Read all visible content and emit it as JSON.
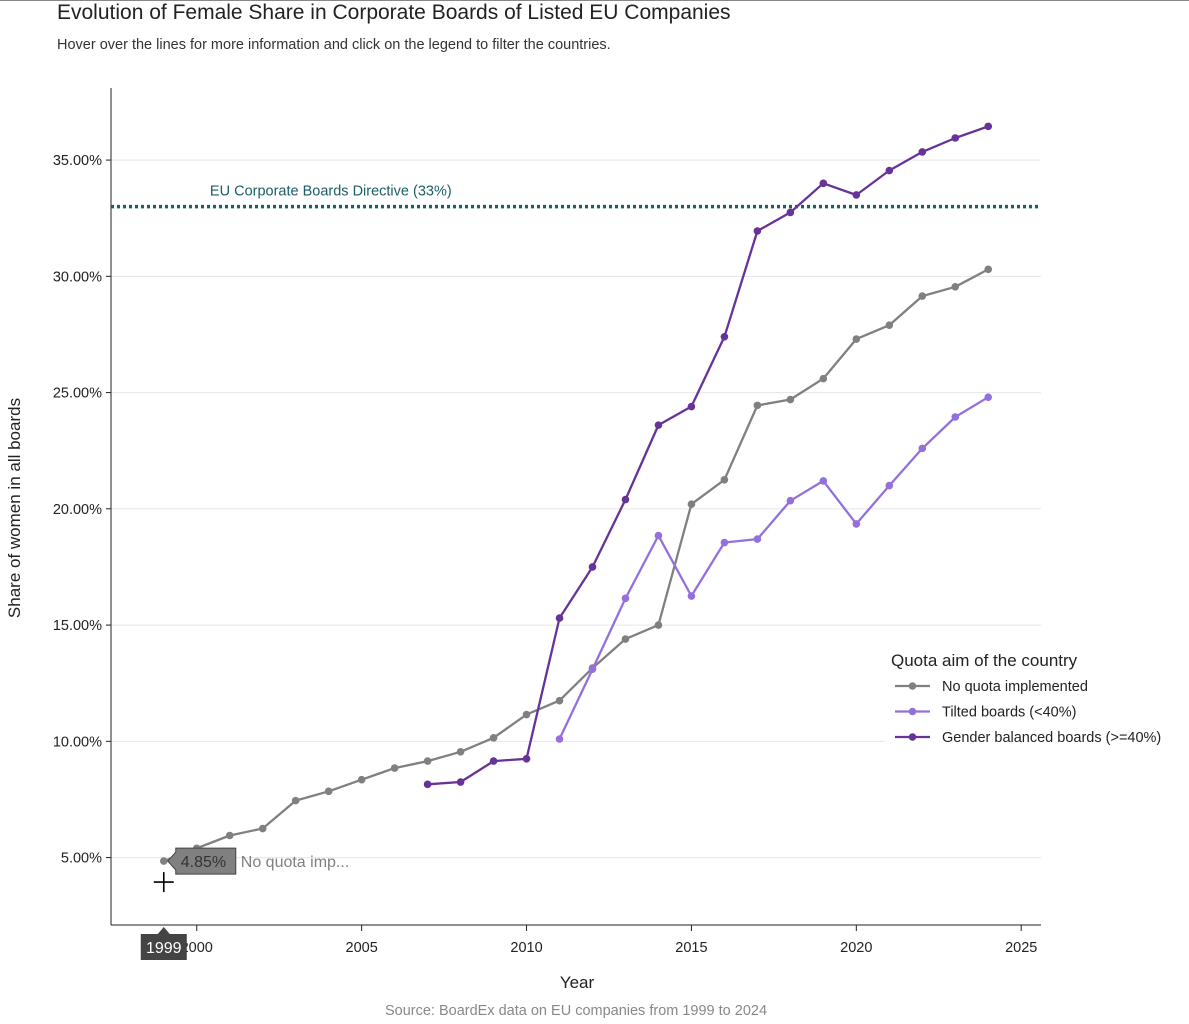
{
  "header": {
    "title": "Evolution of Female Share in Corporate Boards of Listed EU Companies",
    "subtitle": "Hover over the lines for more information and click on the legend to filter the countries."
  },
  "footer": {
    "source": "Source: BoardEx data on EU companies from 1999 to 2024"
  },
  "chart_data": {
    "type": "line",
    "title": "Evolution of Female Share in Corporate Boards of Listed EU Companies",
    "xlabel": "Year",
    "ylabel": "Share of women in all boards",
    "xlim": [
      1997.4,
      2025.6
    ],
    "ylim": [
      2.1,
      38.1
    ],
    "x_ticks": [
      2000,
      2005,
      2010,
      2015,
      2020,
      2025
    ],
    "y_ticks": [
      5,
      10,
      15,
      20,
      25,
      30,
      35
    ],
    "y_tick_labels": [
      "5.00%",
      "10.00%",
      "15.00%",
      "20.00%",
      "25.00%",
      "30.00%",
      "35.00%"
    ],
    "grid": true,
    "legend": {
      "title": "Quota aim of the country",
      "position": "right"
    },
    "reference_line": {
      "value": 33,
      "label": "EU Corporate Boards Directive (33%)",
      "color": "#1b5e66"
    },
    "series": [
      {
        "name": "No quota implemented",
        "color": "#808080",
        "x": [
          1999,
          2000,
          2001,
          2002,
          2003,
          2004,
          2005,
          2006,
          2007,
          2008,
          2009,
          2010,
          2011,
          2012,
          2013,
          2014,
          2015,
          2016,
          2017,
          2018,
          2019,
          2020,
          2021,
          2022,
          2023,
          2024
        ],
        "y": [
          4.85,
          5.4,
          5.95,
          6.25,
          7.45,
          7.85,
          8.35,
          8.85,
          9.15,
          9.55,
          10.15,
          11.15,
          11.75,
          13.15,
          14.4,
          15.0,
          20.2,
          21.25,
          24.45,
          24.7,
          25.6,
          27.3,
          27.9,
          29.15,
          29.55,
          30.3
        ]
      },
      {
        "name": "Tilted boards (<40%)",
        "color": "#9370db",
        "x": [
          2011,
          2012,
          2013,
          2014,
          2015,
          2016,
          2017,
          2018,
          2019,
          2020,
          2021,
          2022,
          2023,
          2024
        ],
        "y": [
          10.1,
          13.1,
          16.15,
          18.85,
          16.25,
          18.55,
          18.7,
          20.35,
          21.2,
          19.35,
          21.0,
          22.6,
          23.95,
          24.8
        ]
      },
      {
        "name": "Gender balanced boards (>=40%)",
        "color": "#663399",
        "x": [
          2007,
          2008,
          2009,
          2010,
          2011,
          2012,
          2013,
          2014,
          2015,
          2016,
          2017,
          2018,
          2019,
          2020,
          2021,
          2022,
          2023,
          2024
        ],
        "y": [
          8.15,
          8.25,
          9.15,
          9.25,
          15.3,
          17.5,
          20.4,
          23.6,
          24.4,
          27.4,
          31.95,
          32.75,
          34.0,
          33.5,
          34.55,
          35.35,
          35.95,
          36.45
        ]
      }
    ],
    "hover": {
      "x_label": "1999",
      "value_label": "4.85%",
      "series_label": "No quota imp..."
    }
  }
}
